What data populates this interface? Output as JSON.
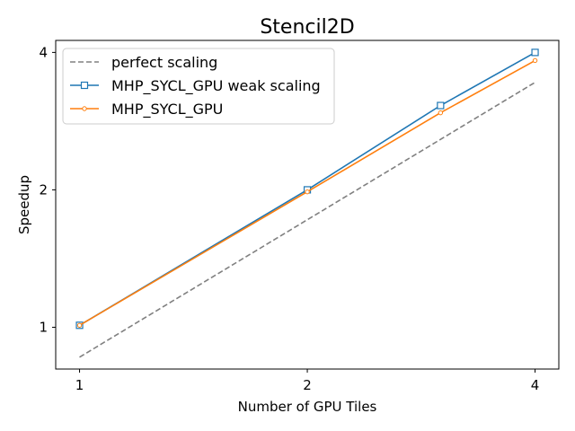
{
  "chart_data": {
    "type": "line",
    "title": "Stencil2D",
    "xlabel": "Number of GPU Tiles",
    "ylabel": "Speedup",
    "xscale": "log2",
    "yscale": "log2",
    "xlim": [
      0.93,
      4.3
    ],
    "ylim": [
      0.81,
      4.25
    ],
    "xticks": [
      {
        "value": 1,
        "label": "1"
      },
      {
        "value": 2,
        "label": "2"
      },
      {
        "value": 4,
        "label": "4"
      }
    ],
    "yticks": [
      {
        "value": 1,
        "label": "1"
      },
      {
        "value": 2,
        "label": "2"
      },
      {
        "value": 4,
        "label": "4"
      }
    ],
    "legend_position": "top-left",
    "grid": false,
    "series": [
      {
        "name": "perfect scaling",
        "style": "dashed",
        "color": "#808080",
        "marker": "none",
        "x": [
          1,
          4
        ],
        "y": [
          0.86,
          3.44
        ]
      },
      {
        "name": "MHP_SYCL_GPU weak scaling",
        "style": "solid",
        "color": "#1f77b4",
        "marker": "square",
        "x": [
          1,
          2,
          3,
          4
        ],
        "y": [
          1.01,
          2.0,
          3.06,
          4.0
        ]
      },
      {
        "name": "MHP_SYCL_GPU",
        "style": "solid",
        "color": "#ff7f0e",
        "marker": "circle",
        "x": [
          1,
          2,
          3,
          4
        ],
        "y": [
          1.01,
          1.98,
          2.95,
          3.84
        ]
      }
    ]
  }
}
